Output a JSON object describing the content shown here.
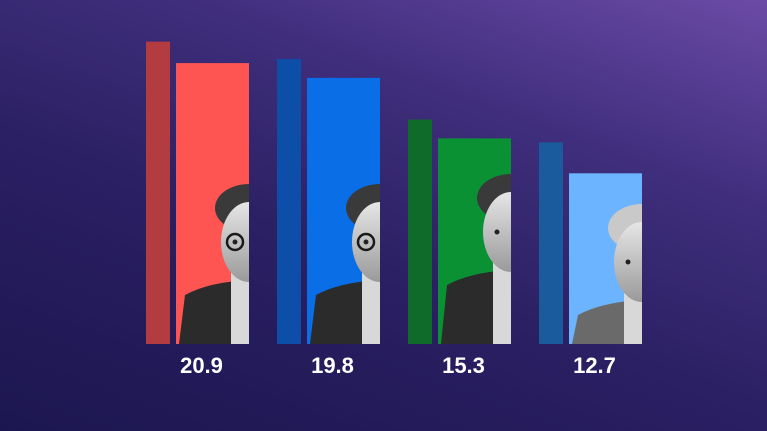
{
  "chart_data": {
    "type": "bar",
    "title": "",
    "xlabel": "",
    "ylabel": "",
    "categories": [
      "",
      "",
      "",
      ""
    ],
    "series": [
      {
        "values": [
          22.5,
          21.2,
          16.7,
          15.0
        ]
      },
      {
        "values": [
          20.9,
          19.8,
          15.3,
          12.7
        ]
      }
    ],
    "labels": [
      "20.9",
      "19.8",
      "15.3",
      "12.7"
    ],
    "ylim": [
      0,
      25
    ],
    "grid": false,
    "colors": {
      "previous": [
        "#b23c40",
        "#0d4fa8",
        "#0f6b2a",
        "#1a5b9e"
      ],
      "current": [
        "#ff5552",
        "#0a6ee6",
        "#0a9134",
        "#6cb4ff"
      ]
    }
  }
}
